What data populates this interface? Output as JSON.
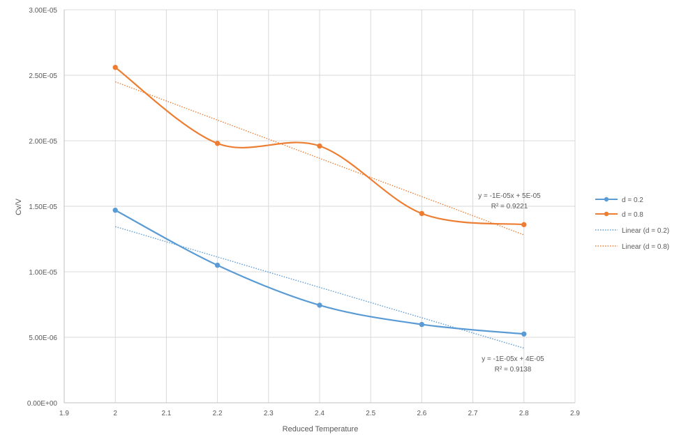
{
  "chart_data": {
    "type": "scatter",
    "title": "",
    "xlabel": "Reduced Temperature",
    "ylabel": "Cv/V",
    "xlim": [
      1.9,
      2.9
    ],
    "ylim": [
      0,
      3e-05
    ],
    "x_ticks": [
      1.9,
      2.0,
      2.1,
      2.2,
      2.3,
      2.4,
      2.5,
      2.6,
      2.7,
      2.8,
      2.9
    ],
    "x_tick_labels": [
      "1.9",
      "2",
      "2.1",
      "2.2",
      "2.3",
      "2.4",
      "2.5",
      "2.6",
      "2.7",
      "2.8",
      "2.9"
    ],
    "y_ticks": [
      0,
      5e-06,
      1e-05,
      1.5e-05,
      2e-05,
      2.5e-05,
      3e-05
    ],
    "y_tick_labels": [
      "0.00E+00",
      "5.00E-06",
      "1.00E-05",
      "1.50E-05",
      "2.00E-05",
      "2.50E-05",
      "3.00E-05"
    ],
    "grid": true,
    "legend_position": "right",
    "series": [
      {
        "name": "d = 0.2",
        "color": "#5B9BD5",
        "x": [
          2.0,
          2.2,
          2.4,
          2.6,
          2.8
        ],
        "y": [
          1.47e-05,
          1.05e-05,
          7.45e-06,
          5.98e-06,
          5.25e-06
        ],
        "trendline": {
          "name": "Linear (d = 0.2)",
          "slope": -1.16e-05,
          "intercept": 3.665e-05,
          "equation": "y = -1E-05x + 4E-05",
          "r2": "R² = 0.9138"
        }
      },
      {
        "name": "d = 0.8",
        "color": "#ED7D31",
        "x": [
          2.0,
          2.2,
          2.4,
          2.6,
          2.8
        ],
        "y": [
          2.56e-05,
          1.98e-05,
          1.96e-05,
          1.445e-05,
          1.36e-05
        ],
        "trendline": {
          "name": "Linear (d = 0.8)",
          "slope": -1.46e-05,
          "intercept": 5.37e-05,
          "equation": "y = -1E-05x + 5E-05",
          "r2": "R² = 0.9221"
        }
      }
    ]
  }
}
